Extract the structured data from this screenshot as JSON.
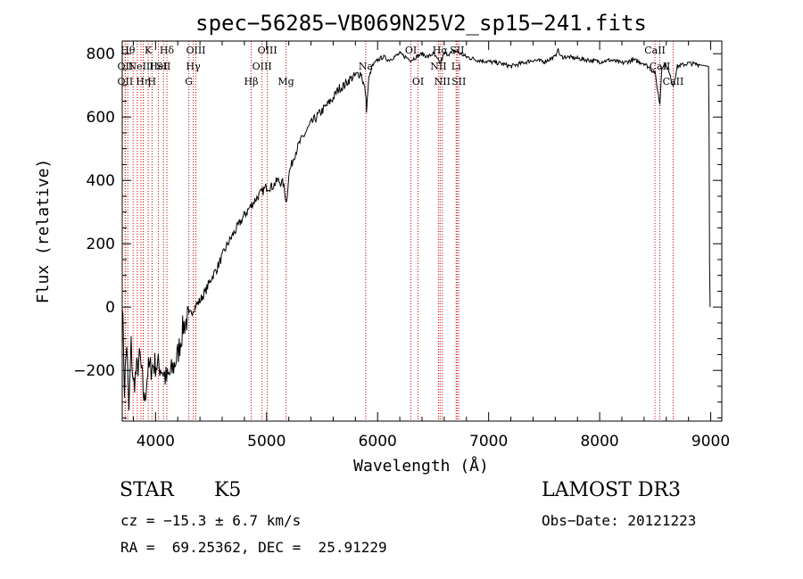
{
  "chart_data": {
    "type": "line",
    "title": "spec−56285−VB069N25V2_sp15−241.fits",
    "xlabel": "Wavelength (Å)",
    "ylabel": "Flux (relative)",
    "xlim": [
      3700,
      9100
    ],
    "ylim": [
      -360,
      840
    ],
    "x_ticks": [
      4000,
      5000,
      6000,
      7000,
      8000,
      9000
    ],
    "y_ticks": [
      -200,
      0,
      200,
      400,
      600,
      800
    ],
    "grid": false,
    "legend": "none",
    "line_color": "#000000",
    "marker_line_color": "#cc0000",
    "spectrum_anchor_points": [
      [
        3700,
        40
      ],
      [
        3720,
        -260
      ],
      [
        3740,
        -110
      ],
      [
        3760,
        -330
      ],
      [
        3780,
        -120
      ],
      [
        3800,
        -250
      ],
      [
        3830,
        -200
      ],
      [
        3860,
        -160
      ],
      [
        3900,
        -300
      ],
      [
        3930,
        -200
      ],
      [
        3960,
        -190
      ],
      [
        4000,
        -180
      ],
      [
        4050,
        -190
      ],
      [
        4100,
        -230
      ],
      [
        4150,
        -200
      ],
      [
        4200,
        -150
      ],
      [
        4250,
        -60
      ],
      [
        4300,
        -30
      ],
      [
        4350,
        0
      ],
      [
        4400,
        20
      ],
      [
        4450,
        50
      ],
      [
        4500,
        90
      ],
      [
        4550,
        120
      ],
      [
        4600,
        160
      ],
      [
        4650,
        200
      ],
      [
        4700,
        230
      ],
      [
        4750,
        260
      ],
      [
        4800,
        290
      ],
      [
        4860,
        320
      ],
      [
        4900,
        340
      ],
      [
        4950,
        360
      ],
      [
        5000,
        380
      ],
      [
        5050,
        380
      ],
      [
        5100,
        400
      ],
      [
        5150,
        390
      ],
      [
        5180,
        330
      ],
      [
        5200,
        420
      ],
      [
        5250,
        480
      ],
      [
        5300,
        520
      ],
      [
        5350,
        550
      ],
      [
        5400,
        580
      ],
      [
        5450,
        600
      ],
      [
        5500,
        620
      ],
      [
        5550,
        640
      ],
      [
        5600,
        660
      ],
      [
        5650,
        690
      ],
      [
        5700,
        700
      ],
      [
        5750,
        720
      ],
      [
        5800,
        730
      ],
      [
        5850,
        740
      ],
      [
        5890,
        680
      ],
      [
        5900,
        620
      ],
      [
        5920,
        720
      ],
      [
        5950,
        760
      ],
      [
        6000,
        780
      ],
      [
        6050,
        790
      ],
      [
        6100,
        780
      ],
      [
        6150,
        790
      ],
      [
        6200,
        800
      ],
      [
        6250,
        790
      ],
      [
        6300,
        780
      ],
      [
        6350,
        790
      ],
      [
        6400,
        800
      ],
      [
        6450,
        790
      ],
      [
        6500,
        800
      ],
      [
        6563,
        770
      ],
      [
        6600,
        800
      ],
      [
        6650,
        800
      ],
      [
        6700,
        810
      ],
      [
        6750,
        800
      ],
      [
        6800,
        790
      ],
      [
        6900,
        780
      ],
      [
        7000,
        775
      ],
      [
        7100,
        770
      ],
      [
        7200,
        760
      ],
      [
        7300,
        770
      ],
      [
        7400,
        780
      ],
      [
        7500,
        775
      ],
      [
        7600,
        790
      ],
      [
        7620,
        815
      ],
      [
        7650,
        790
      ],
      [
        7700,
        790
      ],
      [
        7800,
        785
      ],
      [
        7900,
        780
      ],
      [
        8000,
        775
      ],
      [
        8100,
        780
      ],
      [
        8200,
        770
      ],
      [
        8300,
        780
      ],
      [
        8400,
        770
      ],
      [
        8498,
        740
      ],
      [
        8542,
        640
      ],
      [
        8560,
        760
      ],
      [
        8600,
        765
      ],
      [
        8662,
        700
      ],
      [
        8700,
        760
      ],
      [
        8800,
        770
      ],
      [
        8900,
        765
      ],
      [
        8980,
        760
      ],
      [
        8985,
        590
      ],
      [
        8990,
        130
      ],
      [
        8995,
        0
      ]
    ],
    "line_markers": [
      {
        "wavelength": 3750,
        "label": "Hθ",
        "row": 0
      },
      {
        "wavelength": 3727,
        "label": "OII",
        "row": 1
      },
      {
        "wavelength": 3727,
        "label": "OII",
        "row": 2
      },
      {
        "wavelength": 3798,
        "label": "",
        "row": -1
      },
      {
        "wavelength": 3835,
        "label": "",
        "row": -1
      },
      {
        "wavelength": 3869,
        "label": "NeIII",
        "row": 1
      },
      {
        "wavelength": 3889,
        "label": "Hη",
        "row": 2
      },
      {
        "wavelength": 3934,
        "label": "K",
        "row": 0
      },
      {
        "wavelength": 3968,
        "label": "H",
        "row": 2
      },
      {
        "wavelength": 4026,
        "label": "HeI",
        "row": 1
      },
      {
        "wavelength": 4072,
        "label": "SII",
        "row": 1
      },
      {
        "wavelength": 4102,
        "label": "Hδ",
        "row": 0
      },
      {
        "wavelength": 4300,
        "label": "G",
        "row": 2
      },
      {
        "wavelength": 4340,
        "label": "Hγ",
        "row": 1
      },
      {
        "wavelength": 4363,
        "label": "OIII",
        "row": 0
      },
      {
        "wavelength": 4861,
        "label": "Hβ",
        "row": 2
      },
      {
        "wavelength": 4959,
        "label": "OIII",
        "row": 1
      },
      {
        "wavelength": 5007,
        "label": "OIII",
        "row": 0
      },
      {
        "wavelength": 5175,
        "label": "Mg",
        "row": 2
      },
      {
        "wavelength": 5893,
        "label": "Na",
        "row": 1
      },
      {
        "wavelength": 6300,
        "label": "OI",
        "row": 0
      },
      {
        "wavelength": 6364,
        "label": "OI",
        "row": 2
      },
      {
        "wavelength": 6548,
        "label": "NII",
        "row": 1
      },
      {
        "wavelength": 6563,
        "label": "Hα",
        "row": 0
      },
      {
        "wavelength": 6583,
        "label": "NII",
        "row": 2
      },
      {
        "wavelength": 6707,
        "label": "Li",
        "row": 1
      },
      {
        "wavelength": 6716,
        "label": "SII",
        "row": 0
      },
      {
        "wavelength": 6731,
        "label": "SII",
        "row": 2
      },
      {
        "wavelength": 8498,
        "label": "CaII",
        "row": 0
      },
      {
        "wavelength": 8542,
        "label": "CaII",
        "row": 1
      },
      {
        "wavelength": 8662,
        "label": "CaII",
        "row": 2
      }
    ]
  },
  "info": {
    "class_label": "STAR",
    "subclass": "K5",
    "survey": "LAMOST DR3",
    "redshift_line": "cz = −15.3 ± 6.7 km/s",
    "obs_date_line": "Obs−Date: 20121223",
    "coords_line": "RA =  69.25362, DEC =  25.91229"
  }
}
